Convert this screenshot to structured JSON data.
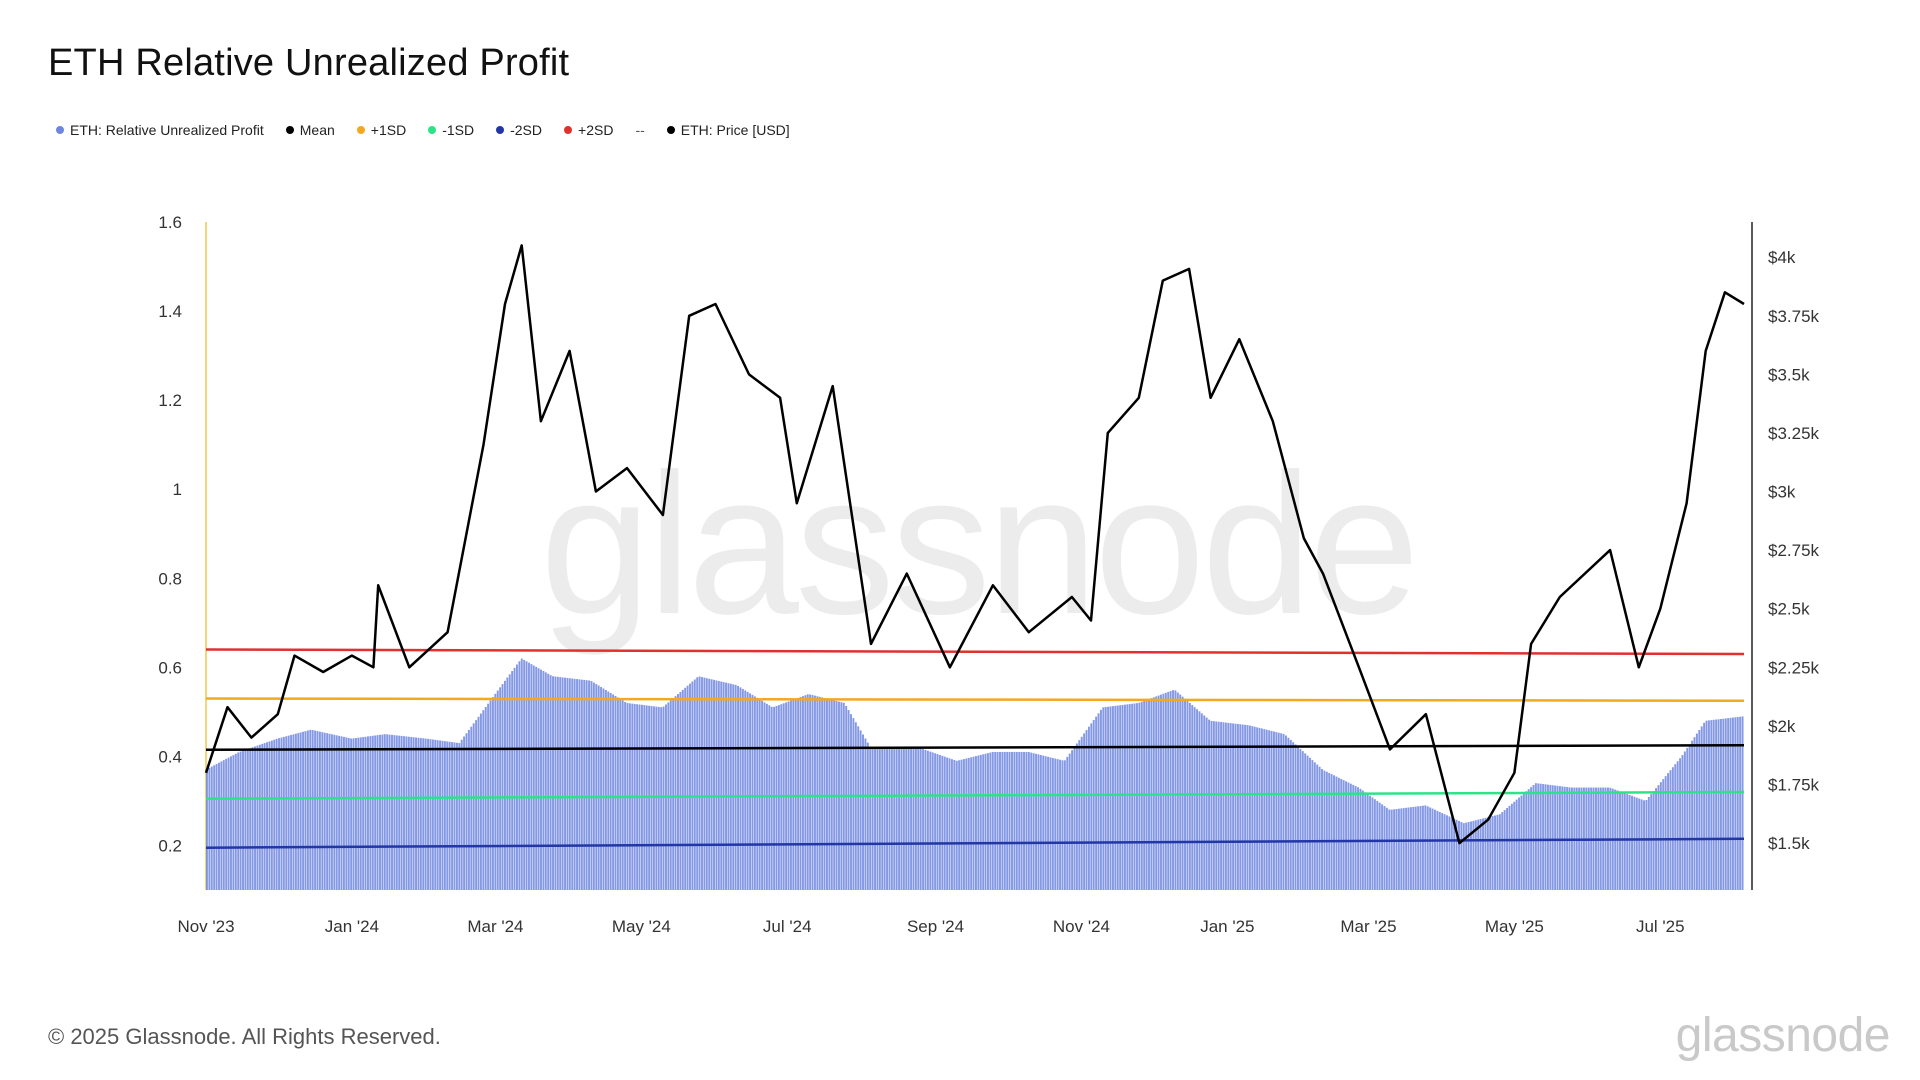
{
  "title": "ETH Relative Unrealized Profit",
  "legend": [
    {
      "label": "ETH: Relative Unrealized Profit",
      "color": "#6f86e0"
    },
    {
      "label": "Mean",
      "color": "#000000"
    },
    {
      "label": "+1SD",
      "color": "#f3a81f"
    },
    {
      "label": "-1SD",
      "color": "#2de38a"
    },
    {
      "label": "-2SD",
      "color": "#2236a6"
    },
    {
      "label": "+2SD",
      "color": "#e0312f"
    },
    {
      "label": "ETH: Price [USD]",
      "color": "#000000"
    }
  ],
  "legend_separator": "--",
  "watermark": "glassnode",
  "footer": {
    "copyright": "© 2025 Glassnode. All Rights Reserved.",
    "logo": "glassnode"
  },
  "chart_data": {
    "type": "bar",
    "title": "ETH Relative Unrealized Profit",
    "x_ticks": [
      "Nov '23",
      "Jan '24",
      "Mar '24",
      "May '24",
      "Jul '24",
      "Sep '24",
      "Nov '24",
      "Jan '25",
      "Mar '25",
      "May '25",
      "Jul '25"
    ],
    "y_left_ticks": [
      "1.6",
      "1.4",
      "1.2",
      "1",
      "0.8",
      "0.6",
      "0.4",
      "0.2"
    ],
    "y_left_range": [
      0.1,
      1.6
    ],
    "y_right_ticks": [
      "$4k",
      "$3.75k",
      "$3.5k",
      "$3.25k",
      "$3k",
      "$2.75k",
      "$2.5k",
      "$2.25k",
      "$2k",
      "$1.75k",
      "$1.5k"
    ],
    "y_right_range": [
      1300,
      4150
    ],
    "x_range": [
      "2023-11-01",
      "2025-08-05"
    ],
    "series": [
      {
        "name": "ETH: Relative Unrealized Profit",
        "type": "bar",
        "axis": "left",
        "color": "#6f86e0",
        "points": [
          [
            "2023-11-01",
            0.37
          ],
          [
            "2023-11-15",
            0.41
          ],
          [
            "2023-12-01",
            0.44
          ],
          [
            "2023-12-15",
            0.46
          ],
          [
            "2024-01-01",
            0.44
          ],
          [
            "2024-01-15",
            0.45
          ],
          [
            "2024-02-01",
            0.44
          ],
          [
            "2024-02-15",
            0.43
          ],
          [
            "2024-03-01",
            0.54
          ],
          [
            "2024-03-12",
            0.62
          ],
          [
            "2024-03-25",
            0.58
          ],
          [
            "2024-04-10",
            0.57
          ],
          [
            "2024-04-25",
            0.52
          ],
          [
            "2024-05-10",
            0.51
          ],
          [
            "2024-05-25",
            0.58
          ],
          [
            "2024-06-10",
            0.56
          ],
          [
            "2024-06-25",
            0.51
          ],
          [
            "2024-07-10",
            0.54
          ],
          [
            "2024-07-25",
            0.52
          ],
          [
            "2024-08-05",
            0.42
          ],
          [
            "2024-08-25",
            0.42
          ],
          [
            "2024-09-10",
            0.39
          ],
          [
            "2024-09-25",
            0.41
          ],
          [
            "2024-10-10",
            0.41
          ],
          [
            "2024-10-25",
            0.39
          ],
          [
            "2024-11-10",
            0.51
          ],
          [
            "2024-11-25",
            0.52
          ],
          [
            "2024-12-10",
            0.55
          ],
          [
            "2024-12-25",
            0.48
          ],
          [
            "2025-01-10",
            0.47
          ],
          [
            "2025-01-25",
            0.45
          ],
          [
            "2025-02-10",
            0.37
          ],
          [
            "2025-02-25",
            0.33
          ],
          [
            "2025-03-10",
            0.28
          ],
          [
            "2025-03-25",
            0.29
          ],
          [
            "2025-04-10",
            0.25
          ],
          [
            "2025-04-25",
            0.27
          ],
          [
            "2025-05-10",
            0.34
          ],
          [
            "2025-05-25",
            0.33
          ],
          [
            "2025-06-10",
            0.33
          ],
          [
            "2025-06-25",
            0.3
          ],
          [
            "2025-07-10",
            0.4
          ],
          [
            "2025-07-20",
            0.48
          ],
          [
            "2025-08-05",
            0.49
          ]
        ]
      },
      {
        "name": "ETH: Price [USD]",
        "type": "line",
        "axis": "right",
        "color": "#000000",
        "points": [
          [
            "2023-11-01",
            1800
          ],
          [
            "2023-11-10",
            2080
          ],
          [
            "2023-11-20",
            1950
          ],
          [
            "2023-12-01",
            2050
          ],
          [
            "2023-12-08",
            2300
          ],
          [
            "2023-12-20",
            2230
          ],
          [
            "2024-01-01",
            2300
          ],
          [
            "2024-01-10",
            2250
          ],
          [
            "2024-01-12",
            2600
          ],
          [
            "2024-01-25",
            2250
          ],
          [
            "2024-02-10",
            2400
          ],
          [
            "2024-02-25",
            3200
          ],
          [
            "2024-03-05",
            3800
          ],
          [
            "2024-03-12",
            4050
          ],
          [
            "2024-03-20",
            3300
          ],
          [
            "2024-04-01",
            3600
          ],
          [
            "2024-04-12",
            3000
          ],
          [
            "2024-04-25",
            3100
          ],
          [
            "2024-05-10",
            2900
          ],
          [
            "2024-05-21",
            3750
          ],
          [
            "2024-06-01",
            3800
          ],
          [
            "2024-06-15",
            3500
          ],
          [
            "2024-06-28",
            3400
          ],
          [
            "2024-07-05",
            2950
          ],
          [
            "2024-07-20",
            3450
          ],
          [
            "2024-08-05",
            2350
          ],
          [
            "2024-08-20",
            2650
          ],
          [
            "2024-09-07",
            2250
          ],
          [
            "2024-09-25",
            2600
          ],
          [
            "2024-10-10",
            2400
          ],
          [
            "2024-10-28",
            2550
          ],
          [
            "2024-11-05",
            2450
          ],
          [
            "2024-11-12",
            3250
          ],
          [
            "2024-11-25",
            3400
          ],
          [
            "2024-12-05",
            3900
          ],
          [
            "2024-12-16",
            3950
          ],
          [
            "2024-12-25",
            3400
          ],
          [
            "2025-01-06",
            3650
          ],
          [
            "2025-01-20",
            3300
          ],
          [
            "2025-02-02",
            2800
          ],
          [
            "2025-02-10",
            2650
          ],
          [
            "2025-02-25",
            2250
          ],
          [
            "2025-03-10",
            1900
          ],
          [
            "2025-03-25",
            2050
          ],
          [
            "2025-04-08",
            1500
          ],
          [
            "2025-04-20",
            1600
          ],
          [
            "2025-05-01",
            1800
          ],
          [
            "2025-05-08",
            2350
          ],
          [
            "2025-05-20",
            2550
          ],
          [
            "2025-06-10",
            2750
          ],
          [
            "2025-06-22",
            2250
          ],
          [
            "2025-07-01",
            2500
          ],
          [
            "2025-07-12",
            2950
          ],
          [
            "2025-07-20",
            3600
          ],
          [
            "2025-07-28",
            3850
          ],
          [
            "2025-08-05",
            3800
          ]
        ]
      },
      {
        "name": "Mean",
        "type": "line",
        "axis": "left",
        "color": "#000000",
        "points": [
          [
            "2023-11-01",
            0.415
          ],
          [
            "2025-08-05",
            0.425
          ]
        ]
      },
      {
        "name": "+1SD",
        "type": "line",
        "axis": "left",
        "color": "#f3a81f",
        "points": [
          [
            "2023-11-01",
            0.53
          ],
          [
            "2025-08-05",
            0.525
          ]
        ]
      },
      {
        "name": "+2SD",
        "type": "line",
        "axis": "left",
        "color": "#e0312f",
        "points": [
          [
            "2023-11-01",
            0.64
          ],
          [
            "2025-08-05",
            0.63
          ]
        ]
      },
      {
        "name": "-1SD",
        "type": "line",
        "axis": "left",
        "color": "#2de38a",
        "points": [
          [
            "2023-11-01",
            0.305
          ],
          [
            "2025-08-05",
            0.32
          ]
        ]
      },
      {
        "name": "-2SD",
        "type": "line",
        "axis": "left",
        "color": "#2236a6",
        "points": [
          [
            "2023-11-01",
            0.195
          ],
          [
            "2025-08-05",
            0.215
          ]
        ]
      }
    ],
    "grid": false,
    "legend_position": "top-left"
  }
}
